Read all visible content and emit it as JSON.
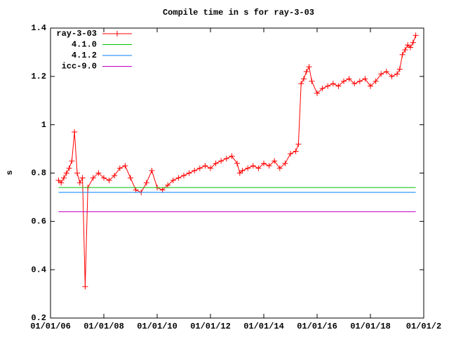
{
  "chart_data": {
    "type": "line",
    "title": "Compile time in s for ray-3-03",
    "y_label": "s",
    "xlim": [
      2006,
      2020
    ],
    "ylim": [
      0.2,
      1.4
    ],
    "xticks": [
      {
        "value": 2006,
        "label": "01/01/06"
      },
      {
        "value": 2008,
        "label": "01/01/08"
      },
      {
        "value": 2010,
        "label": "01/01/10"
      },
      {
        "value": 2012,
        "label": "01/01/12"
      },
      {
        "value": 2014,
        "label": "01/01/14"
      },
      {
        "value": 2016,
        "label": "01/01/16"
      },
      {
        "value": 2018,
        "label": "01/01/18"
      },
      {
        "value": 2020,
        "label": "01/01/2"
      }
    ],
    "yticks": [
      0.2,
      0.4,
      0.6,
      0.8,
      1,
      1.2,
      1.4
    ],
    "legend": "top-left",
    "series": [
      {
        "name": "ray-3-03",
        "color": "#ff0000",
        "markers": true,
        "x": [
          2006.3,
          2006.4,
          2006.5,
          2006.6,
          2006.7,
          2006.8,
          2006.9,
          2007.0,
          2007.1,
          2007.2,
          2007.3,
          2007.4,
          2007.6,
          2007.8,
          2008.0,
          2008.2,
          2008.4,
          2008.6,
          2008.8,
          2009.0,
          2009.2,
          2009.4,
          2009.6,
          2009.8,
          2010.0,
          2010.2,
          2010.4,
          2010.6,
          2010.8,
          2011.0,
          2011.2,
          2011.4,
          2011.6,
          2011.8,
          2012.0,
          2012.2,
          2012.4,
          2012.6,
          2012.8,
          2013.0,
          2013.1,
          2013.2,
          2013.4,
          2013.6,
          2013.8,
          2014.0,
          2014.2,
          2014.4,
          2014.6,
          2014.8,
          2015.0,
          2015.2,
          2015.3,
          2015.4,
          2015.5,
          2015.6,
          2015.7,
          2015.8,
          2016.0,
          2016.2,
          2016.4,
          2016.6,
          2016.8,
          2017.0,
          2017.2,
          2017.4,
          2017.6,
          2017.8,
          2018.0,
          2018.2,
          2018.4,
          2018.6,
          2018.8,
          2019.0,
          2019.1,
          2019.2,
          2019.3,
          2019.4,
          2019.5,
          2019.6,
          2019.7
        ],
        "values": [
          0.77,
          0.76,
          0.78,
          0.8,
          0.82,
          0.85,
          0.97,
          0.8,
          0.76,
          0.78,
          0.33,
          0.74,
          0.78,
          0.8,
          0.78,
          0.77,
          0.79,
          0.82,
          0.83,
          0.78,
          0.73,
          0.72,
          0.76,
          0.81,
          0.74,
          0.73,
          0.75,
          0.77,
          0.78,
          0.79,
          0.8,
          0.81,
          0.82,
          0.83,
          0.82,
          0.84,
          0.85,
          0.86,
          0.87,
          0.84,
          0.8,
          0.81,
          0.82,
          0.83,
          0.82,
          0.84,
          0.83,
          0.85,
          0.82,
          0.84,
          0.88,
          0.89,
          0.92,
          1.17,
          1.19,
          1.22,
          1.24,
          1.18,
          1.13,
          1.15,
          1.16,
          1.17,
          1.16,
          1.18,
          1.19,
          1.17,
          1.18,
          1.19,
          1.16,
          1.18,
          1.21,
          1.22,
          1.2,
          1.21,
          1.23,
          1.29,
          1.31,
          1.33,
          1.32,
          1.34,
          1.37
        ]
      },
      {
        "name": "4.1.0",
        "color": "#00c000",
        "markers": false,
        "x": [
          2006.3,
          2019.7
        ],
        "values": [
          0.74,
          0.74
        ]
      },
      {
        "name": "4.1.2",
        "color": "#0080ff",
        "markers": false,
        "x": [
          2006.3,
          2019.7
        ],
        "values": [
          0.72,
          0.72
        ]
      },
      {
        "name": "icc-9.0",
        "color": "#c000c0",
        "markers": false,
        "x": [
          2006.3,
          2019.7
        ],
        "values": [
          0.64,
          0.64
        ]
      }
    ]
  }
}
